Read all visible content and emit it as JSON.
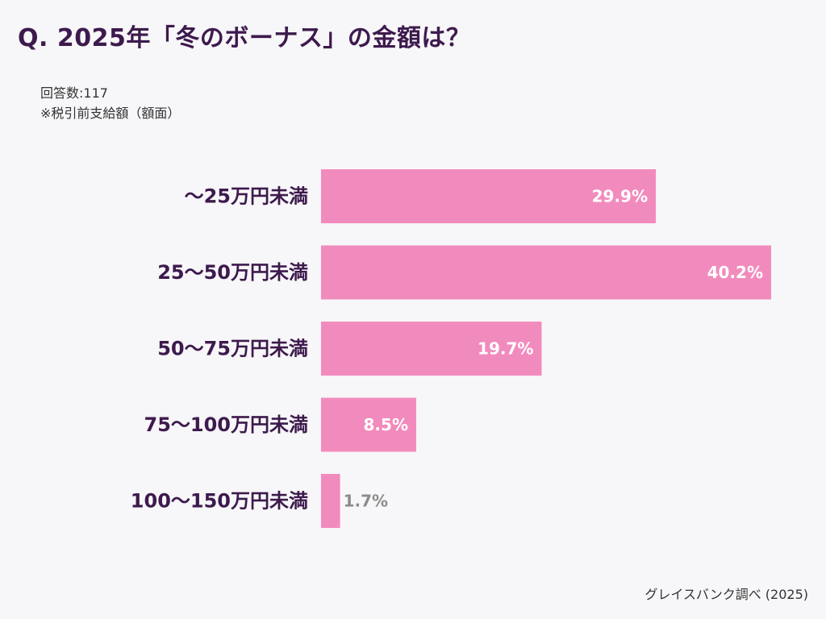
{
  "header": {
    "title": "Q. 2025年「冬のボーナス」の金額は？"
  },
  "notes": {
    "respondents": "回答数:117",
    "basis": "※税引前支給額（額面）"
  },
  "footer": {
    "source": "グレイスバンク調べ (2025)"
  },
  "colors": {
    "bar": "#f28bbd",
    "label_inside": "#ffffff",
    "label_outside": "#8c8c8c"
  },
  "chart_data": {
    "type": "bar",
    "orientation": "horizontal",
    "categories": [
      "〜25万円未満",
      "25〜50万円未満",
      "50〜75万円未満",
      "75〜100万円未満",
      "100〜150万円未満"
    ],
    "values": [
      29.9,
      40.2,
      19.7,
      8.5,
      1.7
    ],
    "value_labels": [
      "29.9%",
      "40.2%",
      "19.7%",
      "8.5%",
      "1.7%"
    ],
    "unit": "%",
    "xlim": [
      0,
      40.2
    ],
    "grid": false,
    "legend": "none"
  }
}
